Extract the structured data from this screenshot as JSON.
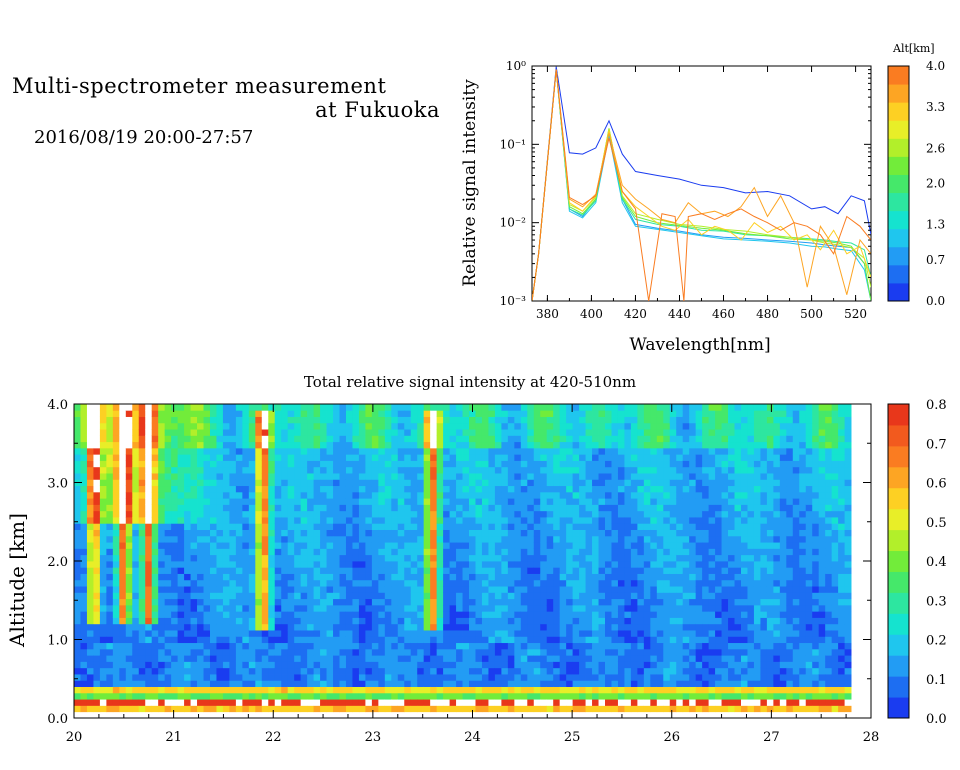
{
  "header": {
    "title_line1": "Multi-spectrometer measurement",
    "title_line2": "at Fukuoka",
    "subtitle": "2016/08/19 20:00-27:57"
  },
  "chart_data": [
    {
      "type": "line",
      "ylabel": "Relative signal intensity",
      "xlabel": "Wavelength[nm]",
      "yscale": "log",
      "ylim": [
        0.001,
        1
      ],
      "xlim": [
        373,
        527
      ],
      "y_ticks": [
        "10⁻³",
        "10⁻²",
        "10⁻¹",
        "10⁰"
      ],
      "x_ticks": [
        380,
        400,
        420,
        440,
        460,
        480,
        500,
        520
      ],
      "x_tick_labels": [
        "380",
        "400",
        "420",
        "440",
        "460",
        "480",
        "500",
        "520"
      ],
      "colorbar": {
        "title": "Alt[km]",
        "min": 0.0,
        "max": 4.0,
        "tick_values": [
          0.0,
          0.7,
          1.3,
          2.0,
          2.6,
          3.3,
          4.0
        ],
        "tick_labels": [
          "0.0",
          "0.7",
          "1.3",
          "2.0",
          "2.6",
          "3.3",
          "4.0"
        ],
        "colors": [
          "#1a3cf0",
          "#1d6ef2",
          "#229cf4",
          "#1fc6ee",
          "#15e3cf",
          "#2de6a0",
          "#45e86a",
          "#72ec3a",
          "#b2ef2a",
          "#e8ee28",
          "#fdd023",
          "#fda523",
          "#fa7c21"
        ]
      },
      "series": [
        {
          "color": "#1a3cf0",
          "x": [
            373,
            376,
            384,
            390,
            396,
            402,
            408,
            414,
            420,
            430,
            440,
            450,
            460,
            470,
            480,
            490,
            500,
            506,
            512,
            518,
            524,
            527
          ],
          "y": [
            0.001,
            0.004,
            0.98,
            0.078,
            0.075,
            0.09,
            0.2,
            0.075,
            0.045,
            0.04,
            0.036,
            0.03,
            0.028,
            0.024,
            0.025,
            0.022,
            0.015,
            0.016,
            0.013,
            0.022,
            0.019,
            0.007
          ]
        },
        {
          "color": "#229cf4",
          "x": [
            373,
            376,
            384,
            390,
            396,
            402,
            408,
            414,
            420,
            430,
            440,
            450,
            460,
            470,
            480,
            490,
            500,
            506,
            512,
            518,
            524,
            527
          ],
          "y": [
            0.001,
            0.004,
            0.9,
            0.015,
            0.012,
            0.02,
            0.14,
            0.02,
            0.0095,
            0.0085,
            0.0078,
            0.007,
            0.0065,
            0.0063,
            0.006,
            0.0058,
            0.0055,
            0.0052,
            0.005,
            0.0048,
            0.003,
            0.001
          ]
        },
        {
          "color": "#1fc6ee",
          "x": [
            373,
            376,
            384,
            390,
            396,
            402,
            408,
            414,
            420,
            430,
            440,
            450,
            460,
            470,
            480,
            490,
            500,
            506,
            512,
            518,
            524,
            527
          ],
          "y": [
            0.001,
            0.004,
            0.9,
            0.014,
            0.0115,
            0.018,
            0.13,
            0.018,
            0.009,
            0.0082,
            0.0075,
            0.0068,
            0.0062,
            0.006,
            0.0058,
            0.0055,
            0.005,
            0.0049,
            0.0046,
            0.0044,
            0.0025,
            0.001
          ]
        },
        {
          "color": "#2de6a0",
          "x": [
            373,
            376,
            384,
            390,
            396,
            402,
            408,
            414,
            420,
            430,
            440,
            450,
            460,
            470,
            480,
            490,
            500,
            506,
            512,
            518,
            524,
            527
          ],
          "y": [
            0.001,
            0.004,
            0.9,
            0.015,
            0.0125,
            0.019,
            0.15,
            0.02,
            0.011,
            0.0095,
            0.009,
            0.008,
            0.0078,
            0.007,
            0.0068,
            0.0065,
            0.0062,
            0.006,
            0.0057,
            0.0055,
            0.0045,
            0.002
          ]
        },
        {
          "color": "#72ec3a",
          "x": [
            373,
            376,
            384,
            390,
            396,
            402,
            408,
            414,
            420,
            430,
            440,
            450,
            460,
            470,
            480,
            490,
            500,
            506,
            512,
            518,
            524,
            527
          ],
          "y": [
            0.001,
            0.004,
            0.9,
            0.016,
            0.013,
            0.02,
            0.16,
            0.021,
            0.012,
            0.01,
            0.0092,
            0.0085,
            0.008,
            0.0072,
            0.0068,
            0.0062,
            0.006,
            0.0058,
            0.0055,
            0.005,
            0.003,
            0.001
          ]
        },
        {
          "color": "#b2ef2a",
          "x": [
            373,
            376,
            384,
            390,
            396,
            402,
            408,
            414,
            420,
            430,
            440,
            450,
            460,
            470,
            480,
            490,
            500,
            506,
            512,
            518,
            524,
            527
          ],
          "y": [
            0.001,
            0.004,
            0.9,
            0.017,
            0.014,
            0.021,
            0.16,
            0.022,
            0.013,
            0.011,
            0.0095,
            0.009,
            0.0082,
            0.0078,
            0.007,
            0.0065,
            0.006,
            0.0055,
            0.0052,
            0.0048,
            0.0035,
            0.0015
          ]
        },
        {
          "color": "#fdd023",
          "x": [
            373,
            376,
            384,
            390,
            396,
            402,
            408,
            414,
            420,
            426,
            432,
            438,
            444,
            450,
            456,
            462,
            468,
            474,
            480,
            486,
            492,
            498,
            504,
            510,
            516,
            522,
            527
          ],
          "y": [
            0.001,
            0.004,
            0.9,
            0.018,
            0.014,
            0.022,
            0.15,
            0.025,
            0.016,
            0.012,
            0.009,
            0.008,
            0.011,
            0.007,
            0.009,
            0.008,
            0.006,
            0.01,
            0.0075,
            0.009,
            0.006,
            0.007,
            0.0045,
            0.008,
            0.004,
            0.005,
            0.002
          ]
        },
        {
          "color": "#fda523",
          "x": [
            373,
            376,
            384,
            390,
            396,
            402,
            408,
            414,
            420,
            426,
            432,
            438,
            444,
            450,
            456,
            462,
            468,
            474,
            480,
            486,
            492,
            498,
            504,
            510,
            516,
            522,
            527
          ],
          "y": [
            0.001,
            0.004,
            0.9,
            0.02,
            0.016,
            0.023,
            0.14,
            0.03,
            0.02,
            0.015,
            0.011,
            0.01,
            0.018,
            0.013,
            0.014,
            0.012,
            0.016,
            0.028,
            0.012,
            0.022,
            0.01,
            0.0015,
            0.009,
            0.005,
            0.0012,
            0.006,
            0.004
          ]
        },
        {
          "color": "#fa7c21",
          "x": [
            373,
            376,
            384,
            390,
            396,
            402,
            408,
            414,
            420,
            426,
            432,
            438,
            442,
            444,
            450,
            456,
            462,
            468,
            474,
            480,
            486,
            492,
            498,
            504,
            510,
            516,
            522,
            527
          ],
          "y": [
            0.001,
            0.004,
            0.9,
            0.021,
            0.017,
            0.022,
            0.12,
            0.025,
            0.015,
            0.0008,
            0.013,
            0.012,
            0.0008,
            0.012,
            0.013,
            0.011,
            0.013,
            0.015,
            0.012,
            0.01,
            0.008,
            0.01,
            0.009,
            0.007,
            0.004,
            0.012,
            0.009,
            0.006
          ]
        }
      ]
    },
    {
      "type": "heatmap",
      "title": "Total relative signal intensity at 420-510nm",
      "ylabel": "Altitude [km]",
      "xlim": [
        20,
        28
      ],
      "ylim": [
        0.0,
        4.0
      ],
      "data_x_range": [
        20,
        27.8
      ],
      "x_tick_labels": [
        "20",
        "21",
        "22",
        "23",
        "24",
        "25",
        "26",
        "27",
        "28"
      ],
      "y_tick_labels": [
        "0.0",
        "1.0",
        "2.0",
        "3.0",
        "4.0"
      ],
      "colorbar": {
        "min": 0.0,
        "max": 0.8,
        "tick_labels": [
          "0.0",
          "0.1",
          "0.2",
          "0.3",
          "0.4",
          "0.5",
          "0.6",
          "0.7",
          "0.8"
        ],
        "colors": [
          "#1a3cf0",
          "#1d6ef2",
          "#229cf4",
          "#1fc6ee",
          "#15e3cf",
          "#2de6a0",
          "#45e86a",
          "#72ec3a",
          "#b2ef2a",
          "#e8ee28",
          "#fdd023",
          "#fda523",
          "#fa7c21",
          "#f25a1e",
          "#e8371b"
        ]
      },
      "features": {
        "near_ground_layer_km": [
          0.15,
          0.35
        ],
        "high_plumes_time_hr": [
          20.2,
          20.5,
          20.75,
          21.9,
          23.6
        ],
        "saturated_regions": "white areas above 0.8"
      }
    }
  ]
}
